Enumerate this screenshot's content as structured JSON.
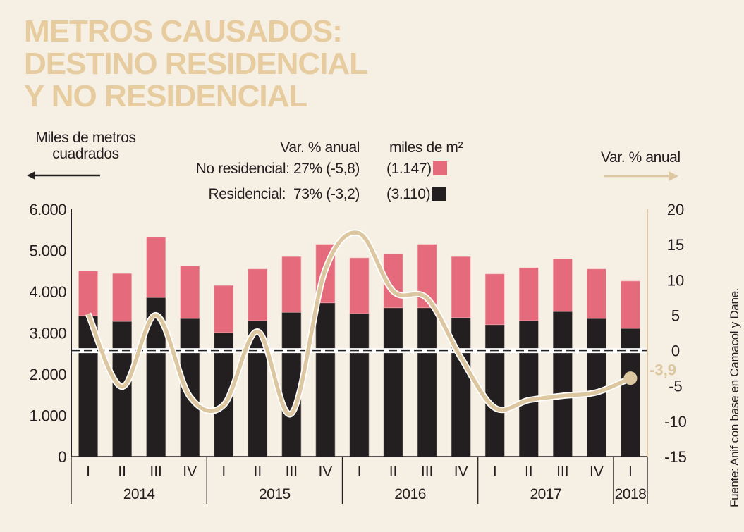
{
  "title_lines": [
    "METROS CAUSADOS:",
    "DESTINO RESIDENCIAL",
    "Y NO RESIDENCIAL"
  ],
  "left_unit": [
    "Miles de metros",
    "cuadrados"
  ],
  "right_unit": "Var. % anual",
  "legend": {
    "header_var": "Var. % anual",
    "header_units": "miles de m²",
    "items": [
      {
        "label": "No residencial: 27% (-5,8)",
        "value": "(1.147)",
        "color": "#e56b7c"
      },
      {
        "label": "Residencial:  73% (-3,2)",
        "value": "(3.110)",
        "color": "#231f20"
      }
    ]
  },
  "source": "Fuente: Anif con base en Camacol y Dane.",
  "colors": {
    "background": "#f6efe4",
    "title": "#e6cc9f",
    "no_residencial": "#e56b7c",
    "residencial": "#231f20",
    "line": "#dcc7a1",
    "axis": "#231f20",
    "right_axis": "#dcc7a1"
  },
  "chart_data": {
    "type": "bar",
    "subtype": "stacked bar with line on secondary axis",
    "title": "METROS CAUSADOS: DESTINO RESIDENCIAL Y NO RESIDENCIAL",
    "ylabel": "Miles de metros cuadrados",
    "y2label": "Var. % anual",
    "ylim": [
      0,
      6000
    ],
    "y2lim": [
      -15,
      20
    ],
    "yticks": [
      "0",
      "1.000",
      "2.000",
      "3.000",
      "4.000",
      "5.000",
      "6.000"
    ],
    "yticks_values": [
      0,
      1000,
      2000,
      3000,
      4000,
      5000,
      6000
    ],
    "y2ticks": [
      "-15",
      "-10",
      "-5",
      "0",
      "5",
      "10",
      "15",
      "20"
    ],
    "y2ticks_values": [
      -15,
      -10,
      -5,
      0,
      5,
      10,
      15,
      20
    ],
    "categories": [
      "I",
      "II",
      "III",
      "IV",
      "I",
      "II",
      "III",
      "IV",
      "I",
      "II",
      "III",
      "IV",
      "I",
      "II",
      "III",
      "IV",
      "I"
    ],
    "years": [
      {
        "label": "2014",
        "count": 4
      },
      {
        "label": "2015",
        "count": 4
      },
      {
        "label": "2016",
        "count": 4
      },
      {
        "label": "2017",
        "count": 4
      },
      {
        "label": "2018",
        "count": 1
      }
    ],
    "series": [
      {
        "name": "Residencial",
        "axis": "left",
        "type": "bar",
        "values": [
          3420,
          3280,
          3860,
          3350,
          3010,
          3300,
          3500,
          3730,
          3470,
          3610,
          3610,
          3370,
          3200,
          3300,
          3520,
          3350,
          3110
        ]
      },
      {
        "name": "No residencial",
        "axis": "left",
        "type": "bar",
        "values": [
          1080,
          1160,
          1460,
          1270,
          1140,
          1250,
          1350,
          1420,
          1350,
          1310,
          1540,
          1480,
          1230,
          1280,
          1280,
          1200,
          1147
        ]
      },
      {
        "name": "Var. % anual total",
        "axis": "right",
        "type": "line",
        "values": [
          5.2,
          -5.1,
          5.0,
          -6.5,
          -7.7,
          2.7,
          -8.9,
          11.5,
          16.6,
          8.4,
          7.4,
          -1.0,
          -8.1,
          -7.0,
          -6.4,
          -5.9,
          -3.9
        ]
      }
    ],
    "annotations": [
      {
        "text": "-3,9",
        "target": "2018 I line value"
      }
    ],
    "reference_line": {
      "axis": "right",
      "value": 0,
      "style": "dashed"
    },
    "grid": false,
    "legend_position": "top"
  }
}
